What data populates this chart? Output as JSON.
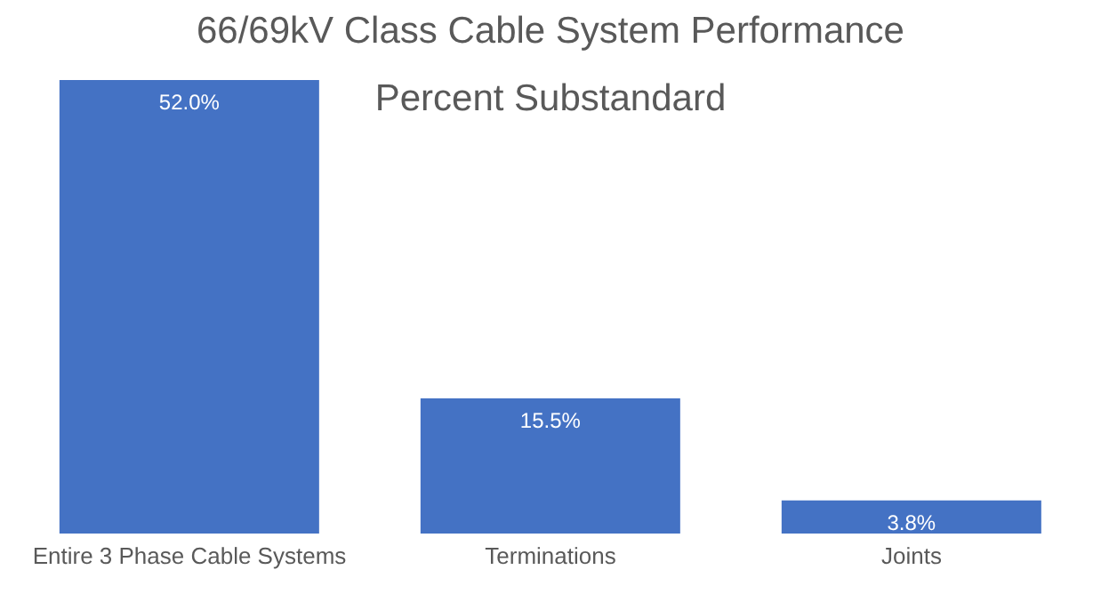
{
  "chart_data": {
    "type": "bar",
    "title": "66/69kV Class Cable System Performance",
    "subtitle": "Percent Substandard",
    "categories": [
      "Entire 3 Phase Cable Systems",
      "Terminations",
      "Joints"
    ],
    "values": [
      52.0,
      15.5,
      3.8
    ],
    "color": "#4472c4",
    "value_labels": [
      "52.0%",
      "15.5%",
      "3.8%"
    ],
    "grid": false,
    "legend": false
  }
}
